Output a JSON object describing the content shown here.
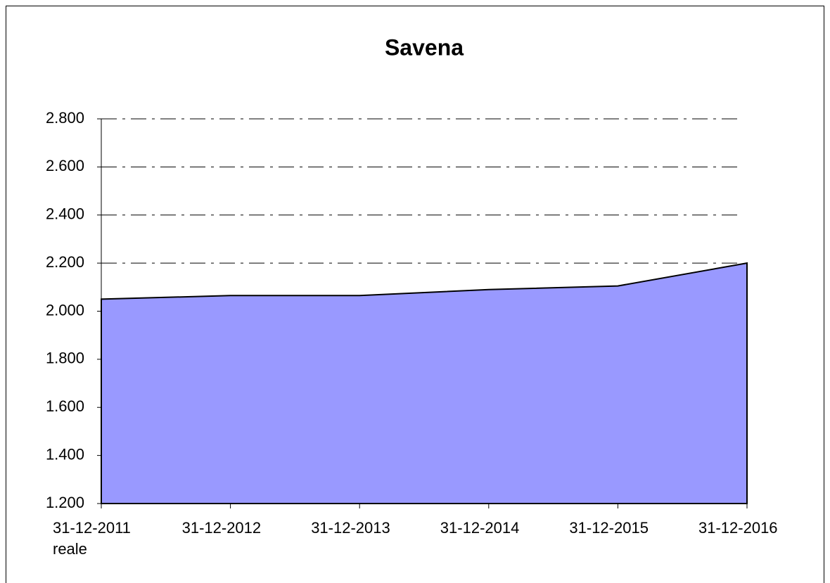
{
  "chart_data": {
    "type": "area",
    "title": "Savena",
    "categories": [
      "31-12-2011\nreale",
      "31-12-2012",
      "31-12-2013",
      "31-12-2014",
      "31-12-2015",
      "31-12-2016"
    ],
    "series": [
      {
        "name": "Savena",
        "color": "#9999ff",
        "values": [
          2050,
          2065,
          2065,
          2090,
          2105,
          2200
        ]
      }
    ],
    "ylim": [
      1200,
      2800
    ],
    "yticks": [
      {
        "value": 1200,
        "label": "1.200"
      },
      {
        "value": 1400,
        "label": "1.400"
      },
      {
        "value": 1600,
        "label": "1.600"
      },
      {
        "value": 1800,
        "label": "1.800"
      },
      {
        "value": 2000,
        "label": "2.000"
      },
      {
        "value": 2200,
        "label": "2.200"
      },
      {
        "value": 2400,
        "label": "2.400"
      },
      {
        "value": 2600,
        "label": "2.600"
      },
      {
        "value": 2800,
        "label": "2.800"
      }
    ],
    "grid": true
  }
}
